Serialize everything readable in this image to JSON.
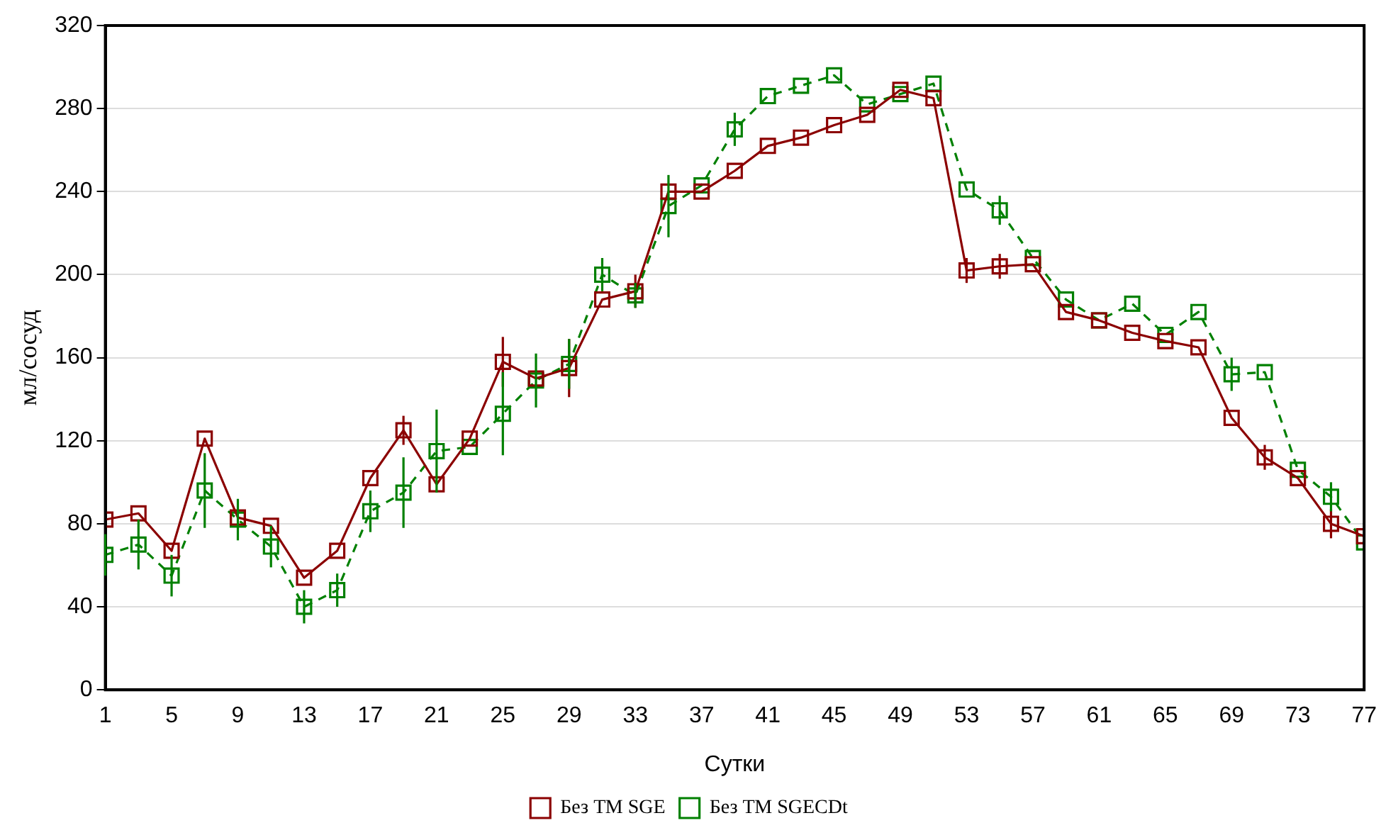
{
  "chart_data": {
    "type": "line",
    "xlabel": "Сутки",
    "ylabel": "мл/сосуд",
    "x": [
      1,
      3,
      5,
      7,
      9,
      11,
      13,
      15,
      17,
      19,
      21,
      23,
      25,
      27,
      29,
      31,
      33,
      35,
      37,
      39,
      41,
      43,
      45,
      47,
      49,
      51,
      53,
      55,
      57,
      59,
      61,
      63,
      65,
      67,
      69,
      71,
      73,
      75,
      77
    ],
    "xlim": [
      1,
      77
    ],
    "xticks": [
      1,
      5,
      9,
      13,
      17,
      21,
      25,
      29,
      33,
      37,
      41,
      45,
      49,
      53,
      57,
      61,
      65,
      69,
      73,
      77
    ],
    "ylim": [
      0,
      320
    ],
    "yticks": [
      0,
      40,
      80,
      120,
      160,
      200,
      240,
      280,
      320
    ],
    "grid": "y",
    "legend": "bottom",
    "marker": "square",
    "series": [
      {
        "name": "Без ТМ SGE",
        "color": "#8b0000",
        "line_style": "solid",
        "values": [
          82,
          85,
          67,
          121,
          83,
          79,
          54,
          67,
          102,
          125,
          99,
          121,
          158,
          150,
          155,
          188,
          192,
          240,
          240,
          250,
          262,
          266,
          272,
          277,
          289,
          285,
          202,
          204,
          205,
          182,
          178,
          172,
          168,
          165,
          131,
          112,
          102,
          80,
          74
        ],
        "errors": [
          null,
          null,
          null,
          null,
          null,
          null,
          null,
          null,
          null,
          7,
          null,
          null,
          12,
          null,
          14,
          null,
          8,
          null,
          null,
          null,
          null,
          null,
          null,
          null,
          null,
          null,
          6,
          6,
          null,
          null,
          null,
          null,
          null,
          null,
          null,
          6,
          null,
          7,
          null
        ]
      },
      {
        "name": "Без ТМ SGECDt",
        "color": "#008000",
        "line_style": "dashed",
        "values": [
          65,
          70,
          55,
          96,
          82,
          69,
          40,
          48,
          86,
          95,
          115,
          117,
          133,
          149,
          157,
          200,
          190,
          233,
          243,
          270,
          286,
          291,
          296,
          282,
          287,
          292,
          241,
          231,
          208,
          188,
          178,
          186,
          171,
          182,
          152,
          153,
          106,
          93,
          71
        ],
        "errors": [
          10,
          12,
          10,
          18,
          10,
          10,
          8,
          8,
          10,
          17,
          20,
          null,
          20,
          13,
          12,
          8,
          6,
          15,
          null,
          8,
          null,
          null,
          null,
          null,
          null,
          null,
          null,
          7,
          null,
          null,
          null,
          null,
          null,
          null,
          8,
          null,
          null,
          7,
          null
        ]
      }
    ]
  }
}
